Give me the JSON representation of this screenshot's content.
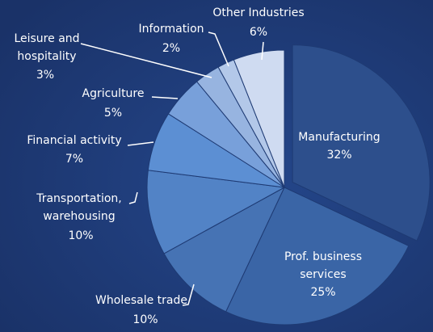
{
  "chart_data": {
    "type": "pie",
    "categories": [
      "Manufacturing",
      "Prof. business services",
      "Wholesale trade",
      "Transportation, warehousing",
      "Financial activity",
      "Agriculture",
      "Leisure and hospitality",
      "Information",
      "Other Industries"
    ],
    "values": [
      32,
      25,
      10,
      10,
      7,
      5,
      3,
      2,
      6
    ],
    "value_labels": [
      "32%",
      "25%",
      "10%",
      "10%",
      "7%",
      "5%",
      "3%",
      "2%",
      "6%"
    ],
    "colors": [
      "#2d4f8c",
      "#3a65a6",
      "#4673b4",
      "#5283c6",
      "#5c8fd3",
      "#78a0da",
      "#97b4e0",
      "#b3c8e9",
      "#cfdbf1"
    ]
  }
}
